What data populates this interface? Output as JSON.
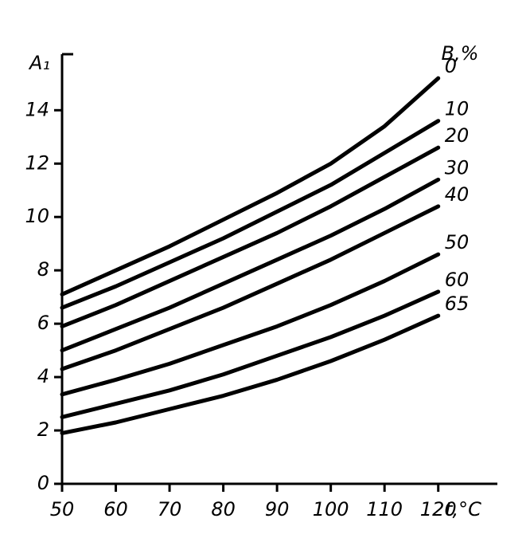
{
  "chart_data": {
    "type": "line",
    "x_label": "t,°C",
    "y_label": "A₁",
    "legend_title": "B,%",
    "x": [
      50,
      60,
      70,
      80,
      90,
      100,
      110,
      120
    ],
    "xlim": [
      50,
      131
    ],
    "xticks": [
      50,
      60,
      70,
      80,
      90,
      100,
      110,
      120
    ],
    "ylim": [
      0,
      16.1
    ],
    "yticks": [
      0,
      2,
      4,
      6,
      8,
      10,
      12,
      14
    ],
    "grid": false,
    "series": [
      {
        "name": "0",
        "color": "#000000",
        "values": [
          7.1,
          8.0,
          8.9,
          9.9,
          10.9,
          12.0,
          13.4,
          15.2
        ]
      },
      {
        "name": "10",
        "color": "#000000",
        "values": [
          6.6,
          7.4,
          8.3,
          9.2,
          10.2,
          11.2,
          12.4,
          13.6
        ]
      },
      {
        "name": "20",
        "color": "#000000",
        "values": [
          5.9,
          6.7,
          7.6,
          8.5,
          9.4,
          10.4,
          11.5,
          12.6
        ]
      },
      {
        "name": "30",
        "color": "#000000",
        "values": [
          5.0,
          5.8,
          6.6,
          7.5,
          8.4,
          9.3,
          10.3,
          11.4
        ]
      },
      {
        "name": "40",
        "color": "#000000",
        "values": [
          4.3,
          5.0,
          5.8,
          6.6,
          7.5,
          8.4,
          9.4,
          10.4
        ]
      },
      {
        "name": "50",
        "color": "#000000",
        "values": [
          3.35,
          3.9,
          4.5,
          5.2,
          5.9,
          6.7,
          7.6,
          8.6
        ]
      },
      {
        "name": "60",
        "color": "#000000",
        "values": [
          2.5,
          3.0,
          3.5,
          4.1,
          4.8,
          5.5,
          6.3,
          7.2
        ]
      },
      {
        "name": "65",
        "color": "#000000",
        "values": [
          1.9,
          2.3,
          2.8,
          3.3,
          3.9,
          4.6,
          5.4,
          6.3
        ]
      }
    ]
  }
}
